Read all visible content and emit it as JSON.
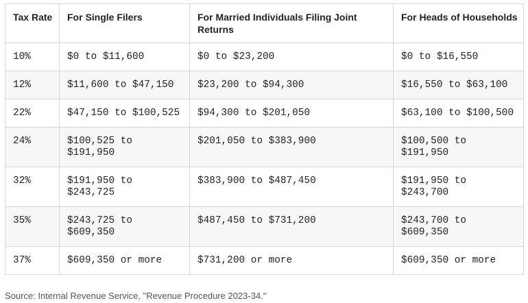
{
  "table": {
    "header": [
      "Tax Rate",
      "For Single Filers",
      "For Married Individuals Filing Joint Returns",
      "For Heads of Households"
    ],
    "rows": [
      [
        "10%",
        "$0 to $11,600",
        "$0 to $23,200",
        "$0 to $16,550"
      ],
      [
        "12%",
        "$11,600 to $47,150",
        "$23,200 to $94,300",
        "$16,550 to $63,100"
      ],
      [
        "22%",
        "$47,150 to $100,525",
        "$94,300 to $201,050",
        "$63,100 to $100,500"
      ],
      [
        "24%",
        "$100,525 to $191,950",
        "$201,050 to $383,900",
        "$100,500 to $191,950"
      ],
      [
        "32%",
        "$191,950 to $243,725",
        "$383,900 to $487,450",
        "$191,950 to $243,700"
      ],
      [
        "35%",
        "$243,725 to $609,350",
        "$487,450 to $731,200",
        "$243,700 to $609,350"
      ],
      [
        "37%",
        "$609,350 or more",
        "$731,200 or more",
        "$609,350 or more"
      ]
    ]
  },
  "source": "Source: Internal Revenue Service, \"Revenue Procedure 2023-34.\""
}
